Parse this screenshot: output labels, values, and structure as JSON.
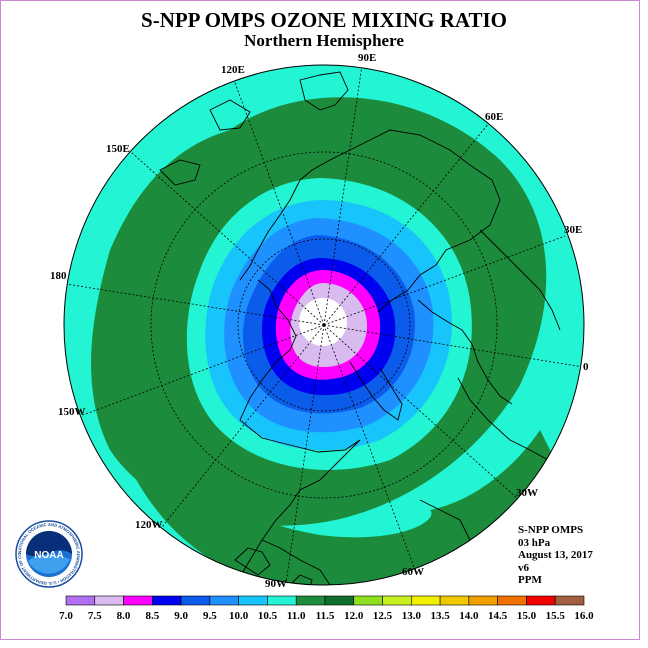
{
  "header": {
    "title": "S-NPP OMPS OZONE MIXING RATIO",
    "subtitle": "Northern Hemisphere"
  },
  "map": {
    "projection": "north-polar-stereographic",
    "longitude_labels": {
      "lon_90E": "90E",
      "lon_60E": "60E",
      "lon_30E": "30E",
      "lon_0": "0",
      "lon_30W": "30W",
      "lon_60W": "60W",
      "lon_90W": "90W",
      "lon_120W": "120W",
      "lon_150W": "150W",
      "lon_180": "180",
      "lon_150E": "150E",
      "lon_120E": "120E"
    },
    "contour_levels_ppm": [
      {
        "level": 8.0,
        "color": "#d8bcf0"
      },
      {
        "level": 8.5,
        "color": "#ff00ff"
      },
      {
        "level": 9.0,
        "color": "#0000f0"
      },
      {
        "level": 9.5,
        "color": "#0c5cec"
      },
      {
        "level": 10.0,
        "color": "#1e90ff"
      },
      {
        "level": 10.5,
        "color": "#18c4fc"
      },
      {
        "level": 11.0,
        "color": "#22f4d4"
      },
      {
        "level": 11.5,
        "color": "#1c8c3c"
      }
    ]
  },
  "info": {
    "product": "S-NPP OMPS",
    "level": "03 hPa",
    "date": "August 13, 2017",
    "version": "v6",
    "units": "PPM"
  },
  "logo": {
    "text": "NOAA",
    "ring_text": "NATIONAL OCEANIC AND ATMOSPHERIC ADMINISTRATION • U.S. DEPARTMENT OF COMMERCE"
  },
  "colorbar": {
    "labels": [
      "7.0",
      "7.5",
      "8.0",
      "8.5",
      "9.0",
      "9.5",
      "10.0",
      "10.5",
      "11.0",
      "11.5",
      "12.0",
      "12.5",
      "13.0",
      "13.5",
      "14.0",
      "14.5",
      "15.0",
      "15.5",
      "16.0"
    ],
    "colors": [
      "#b070f0",
      "#d8bcf0",
      "#ff00ff",
      "#0000f0",
      "#0c5cec",
      "#1e90ff",
      "#18c4fc",
      "#22f4d4",
      "#1c8c3c",
      "#0e6e2c",
      "#90e020",
      "#c8f020",
      "#f0f000",
      "#f0c800",
      "#f0a000",
      "#f07000",
      "#f00000",
      "#a06040"
    ]
  }
}
